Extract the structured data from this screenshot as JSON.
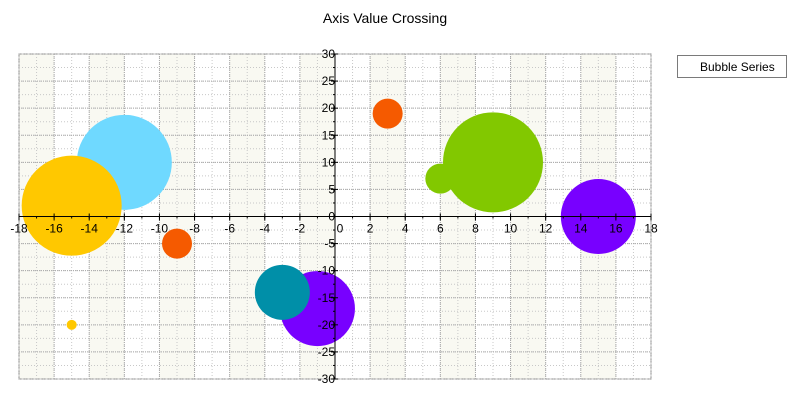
{
  "chart_data": {
    "type": "scatter",
    "subtype": "bubble",
    "title": "Axis Value Crossing",
    "xlabel": "",
    "ylabel": "",
    "xlim": [
      -18,
      18
    ],
    "ylim": [
      -30,
      30
    ],
    "x_major_step": 2,
    "y_major_step": 5,
    "x_axis_crosses_at_y": 0,
    "y_axis_crosses_at_x": 0,
    "grid": true,
    "legend": {
      "position": "top-right",
      "entries": [
        "Bubble Series"
      ]
    },
    "series": [
      {
        "name": "Bubble Series",
        "points": [
          {
            "x": -12,
            "y": 10,
            "size": 9.5,
            "color": "#6fd9ff"
          },
          {
            "x": -15,
            "y": 2,
            "size": 10,
            "color": "#ffc800"
          },
          {
            "x": -15,
            "y": -20,
            "size": 1,
            "color": "#ffc800"
          },
          {
            "x": -9,
            "y": -5,
            "size": 3,
            "color": "#f55a00"
          },
          {
            "x": 3,
            "y": 19,
            "size": 3,
            "color": "#f55a00"
          },
          {
            "x": 6,
            "y": 7,
            "size": 3,
            "color": "#82c800"
          },
          {
            "x": 9,
            "y": 10,
            "size": 10,
            "color": "#82c800"
          },
          {
            "x": 15,
            "y": 0,
            "size": 7.5,
            "color": "#7800ff"
          },
          {
            "x": -1,
            "y": -17,
            "size": 7.5,
            "color": "#7800ff"
          },
          {
            "x": -3,
            "y": -14,
            "size": 5.5,
            "color": "#008fa8"
          }
        ]
      }
    ]
  }
}
